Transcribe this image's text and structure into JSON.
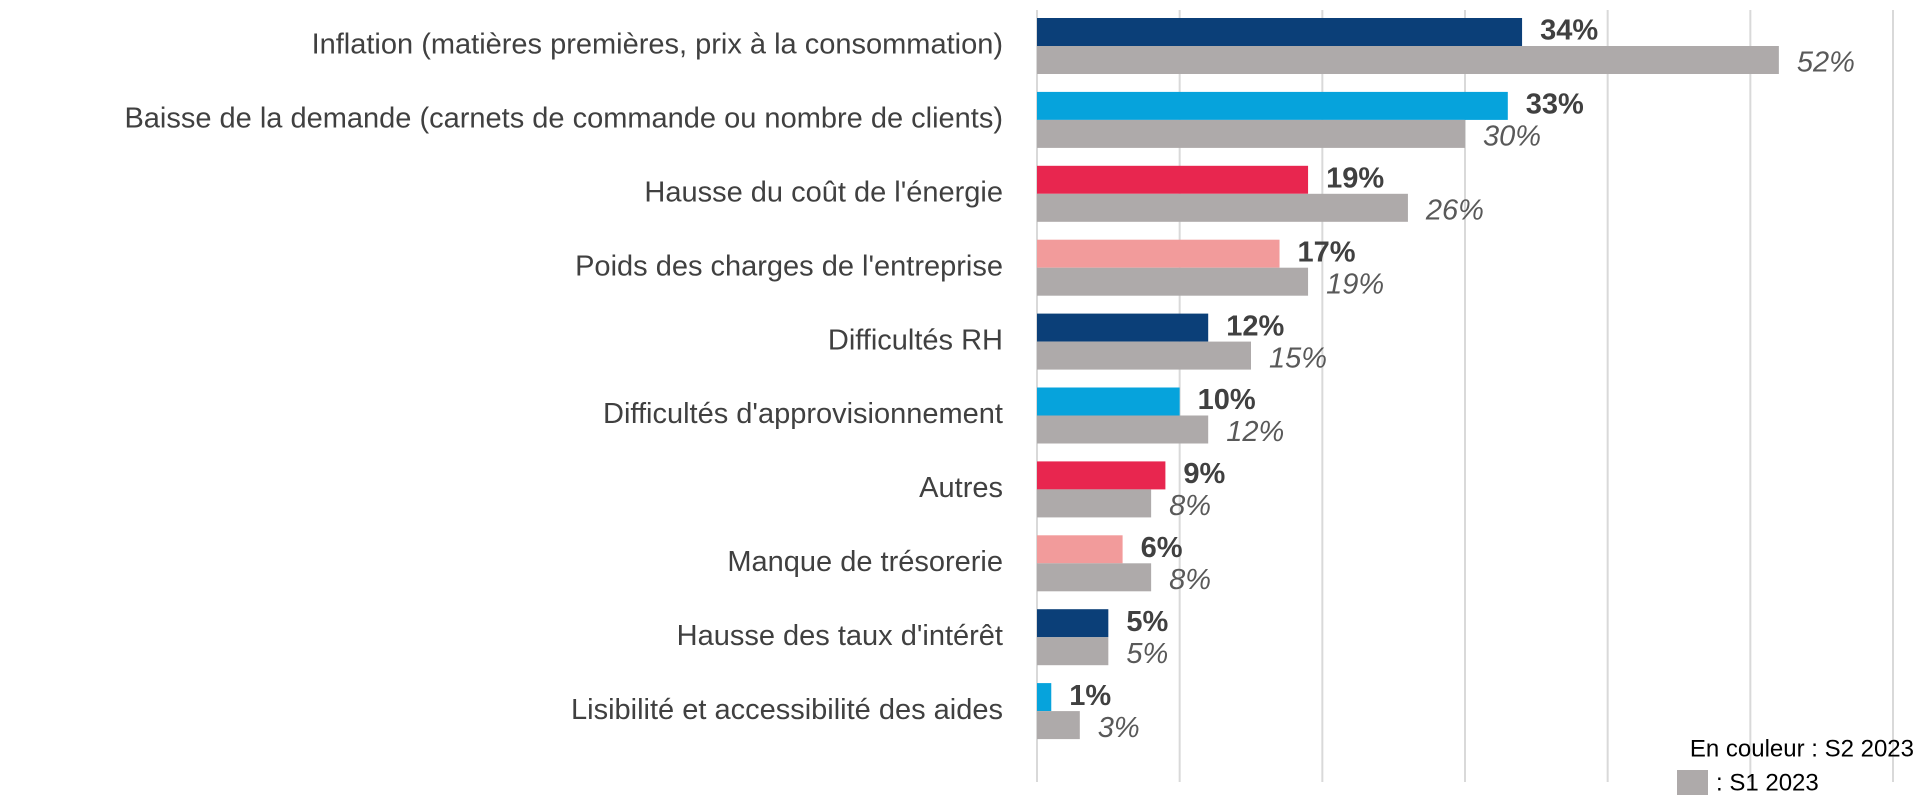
{
  "chart_data": {
    "type": "hbar",
    "categories": [
      "Inflation (matières premières, prix à la consommation)",
      "Baisse de la demande (carnets de commande ou nombre de clients)",
      "Hausse du coût de l'énergie",
      "Poids des charges de l'entreprise",
      "Difficultés RH",
      "Difficultés d'approvisionnement",
      "Autres",
      "Manque de trésorerie",
      "Hausse des taux d'intérêt",
      "Lisibilité et accessibilité des aides"
    ],
    "series": [
      {
        "name": "En couleur : S2 2023",
        "colors": [
          "#0b3f78",
          "#06a3dc",
          "#e8264f",
          "#f29b9b",
          "#0b3f78",
          "#06a3dc",
          "#e8264f",
          "#f29b9b",
          "#0b3f78",
          "#06a3dc"
        ],
        "values": [
          34,
          33,
          19,
          17,
          12,
          10,
          9,
          6,
          5,
          1
        ],
        "value_labels": [
          "34%",
          "33%",
          "19%",
          "17%",
          "12%",
          "10%",
          "9%",
          "6%",
          "5%",
          "1%"
        ]
      },
      {
        "name": ": S1 2023",
        "color": "#aeaaaa",
        "values": [
          52,
          30,
          26,
          19,
          15,
          12,
          8,
          8,
          5,
          3
        ],
        "value_labels": [
          "52%",
          "30%",
          "26%",
          "19%",
          "15%",
          "12%",
          "8%",
          "8%",
          "5%",
          "3%"
        ]
      }
    ],
    "xlim": [
      0,
      60
    ],
    "xticks": [
      0,
      10,
      20,
      30,
      40,
      50,
      60
    ],
    "grid": true
  }
}
